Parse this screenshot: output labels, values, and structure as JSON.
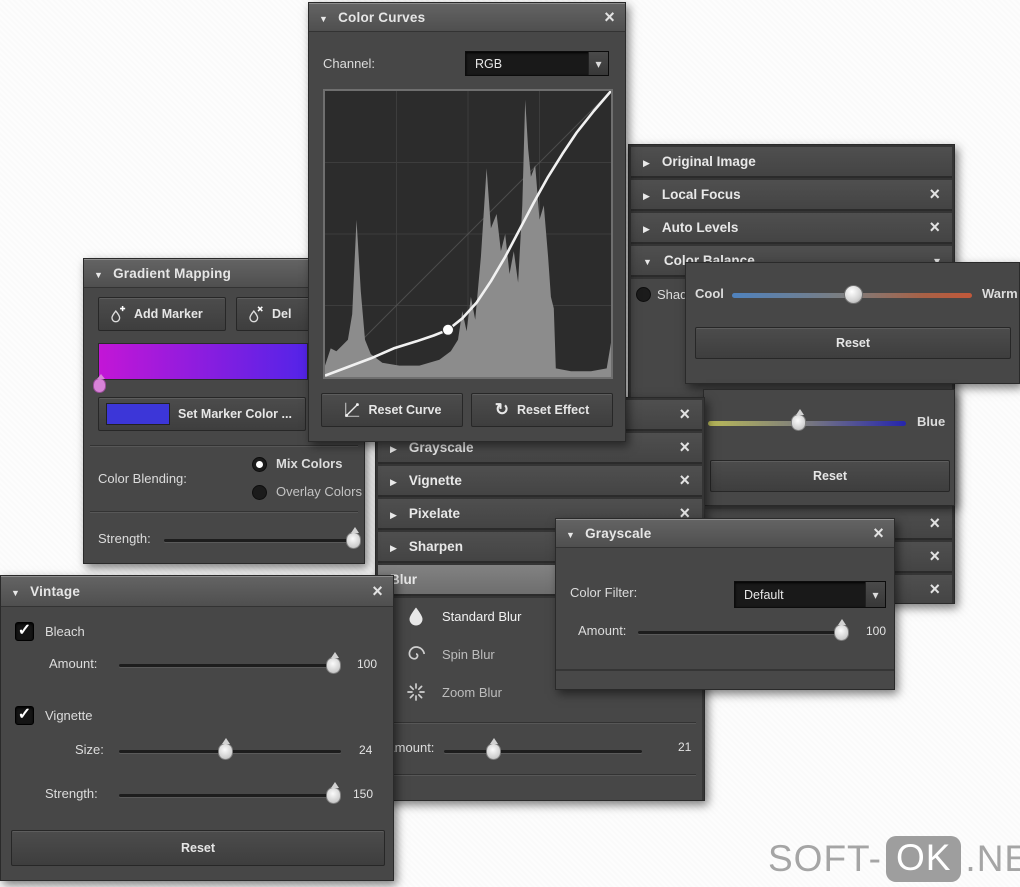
{
  "watermark": {
    "prefix": "SOFT-",
    "badge": "OK",
    "suffix": ".NET"
  },
  "colors": {
    "panel": "#474747",
    "header": "#5c5c5c",
    "text": "#e6e6e6",
    "gradient_bar_start": "#c316d6",
    "gradient_bar_end": "#5324e8",
    "marker_swatch": "#3c36d8",
    "marker_drop": "#d883d8",
    "cool_warm_gradient": [
      "#4f82be",
      "#7d7d7d",
      "#c2583a"
    ],
    "yellow_blue_gradient": [
      "#b9b958",
      "#7d7d7d",
      "#2525ae"
    ],
    "selected_row": "#787878"
  },
  "color_curves": {
    "title": "Color Curves",
    "channel_label": "Channel:",
    "channel_value": "RGB",
    "reset_curve_label": "Reset Curve",
    "reset_effect_label": "Reset Effect",
    "histogram": [
      [
        0.0,
        0.04
      ],
      [
        0.02,
        0.1
      ],
      [
        0.04,
        0.09
      ],
      [
        0.06,
        0.11
      ],
      [
        0.08,
        0.13
      ],
      [
        0.095,
        0.22
      ],
      [
        0.11,
        0.55
      ],
      [
        0.125,
        0.3
      ],
      [
        0.14,
        0.13
      ],
      [
        0.16,
        0.08
      ],
      [
        0.2,
        0.05
      ],
      [
        0.26,
        0.04
      ],
      [
        0.33,
        0.04
      ],
      [
        0.4,
        0.06
      ],
      [
        0.44,
        0.09
      ],
      [
        0.465,
        0.13
      ],
      [
        0.48,
        0.23
      ],
      [
        0.495,
        0.16
      ],
      [
        0.51,
        0.28
      ],
      [
        0.525,
        0.2
      ],
      [
        0.545,
        0.42
      ],
      [
        0.565,
        0.73
      ],
      [
        0.58,
        0.52
      ],
      [
        0.6,
        0.57
      ],
      [
        0.615,
        0.44
      ],
      [
        0.63,
        0.5
      ],
      [
        0.645,
        0.36
      ],
      [
        0.66,
        0.44
      ],
      [
        0.675,
        0.33
      ],
      [
        0.69,
        0.6
      ],
      [
        0.7,
        0.97
      ],
      [
        0.71,
        0.8
      ],
      [
        0.72,
        0.7
      ],
      [
        0.735,
        0.74
      ],
      [
        0.75,
        0.55
      ],
      [
        0.765,
        0.6
      ],
      [
        0.78,
        0.42
      ],
      [
        0.79,
        0.28
      ],
      [
        0.8,
        0.24
      ],
      [
        0.807,
        0.03
      ],
      [
        0.86,
        0.02
      ],
      [
        0.93,
        0.02
      ],
      [
        0.985,
        0.03
      ],
      [
        1.0,
        0.12
      ]
    ],
    "curve": [
      [
        0,
        0.005
      ],
      [
        0.08,
        0.035
      ],
      [
        0.16,
        0.065
      ],
      [
        0.24,
        0.1
      ],
      [
        0.32,
        0.125
      ],
      [
        0.38,
        0.145
      ],
      [
        0.43,
        0.165
      ],
      [
        0.48,
        0.205
      ],
      [
        0.53,
        0.26
      ],
      [
        0.58,
        0.335
      ],
      [
        0.63,
        0.42
      ],
      [
        0.68,
        0.515
      ],
      [
        0.73,
        0.61
      ],
      [
        0.78,
        0.7
      ],
      [
        0.83,
        0.78
      ],
      [
        0.88,
        0.855
      ],
      [
        0.94,
        0.93
      ],
      [
        1.0,
        1.0
      ]
    ],
    "curve_control_point": [
      0.43,
      0.165
    ]
  },
  "gradient_mapping": {
    "title": "Gradient Mapping",
    "add_marker_label": "Add Marker",
    "delete_marker_label": "Del",
    "set_marker_color_label": "Set Marker Color ...",
    "color_blending_label": "Color Blending:",
    "mix_colors_label": "Mix Colors",
    "overlay_colors_label": "Overlay Colors",
    "blending_selected": "Mix Colors",
    "strength_label": "Strength:",
    "strength_percent": 97
  },
  "effects_right": {
    "items": [
      {
        "label": "Original Image",
        "closable": false
      },
      {
        "label": "Local Focus",
        "closable": true
      },
      {
        "label": "Auto Levels",
        "closable": true
      },
      {
        "label": "Color Balance",
        "expanded": true
      }
    ],
    "shadows_label": "Shadows",
    "cool_label": "Cool",
    "warm_label": "Warm",
    "cool_warm_percent": 50,
    "reset_label": "Reset",
    "hidden_rows_with_close": 3
  },
  "blue_adjust": {
    "blue_label": "Blue",
    "blue_percent": 46,
    "reset_label": "Reset"
  },
  "effects_mid": {
    "items": [
      {
        "label": ""
      },
      {
        "label": "Grayscale"
      },
      {
        "label": "Vignette"
      },
      {
        "label": "Pixelate"
      },
      {
        "label": "Sharpen"
      },
      {
        "label": "Blur",
        "selected": true
      }
    ],
    "blur_items": [
      {
        "label": "Standard Blur",
        "icon": "droplet-icon",
        "selected": true
      },
      {
        "label": "Spin Blur",
        "icon": "spiral-icon"
      },
      {
        "label": "Zoom Blur",
        "icon": "starburst-icon"
      }
    ],
    "amount_label": "Amount:",
    "amount_value": "21",
    "amount_percent": 25
  },
  "grayscale": {
    "title": "Grayscale",
    "color_filter_label": "Color Filter:",
    "color_filter_value": "Default",
    "amount_label": "Amount:",
    "amount_value": "100",
    "amount_percent": 97
  },
  "vintage": {
    "title": "Vintage",
    "bleach_label": "Bleach",
    "bleach_checked": true,
    "amount_label": "Amount:",
    "amount_value": "100",
    "amount_percent": 97,
    "vignette_label": "Vignette",
    "vignette_checked": true,
    "size_label": "Size:",
    "size_value": "24",
    "size_percent": 48,
    "strength_label": "Strength:",
    "strength_value": "150",
    "strength_percent": 97,
    "reset_label": "Reset"
  }
}
